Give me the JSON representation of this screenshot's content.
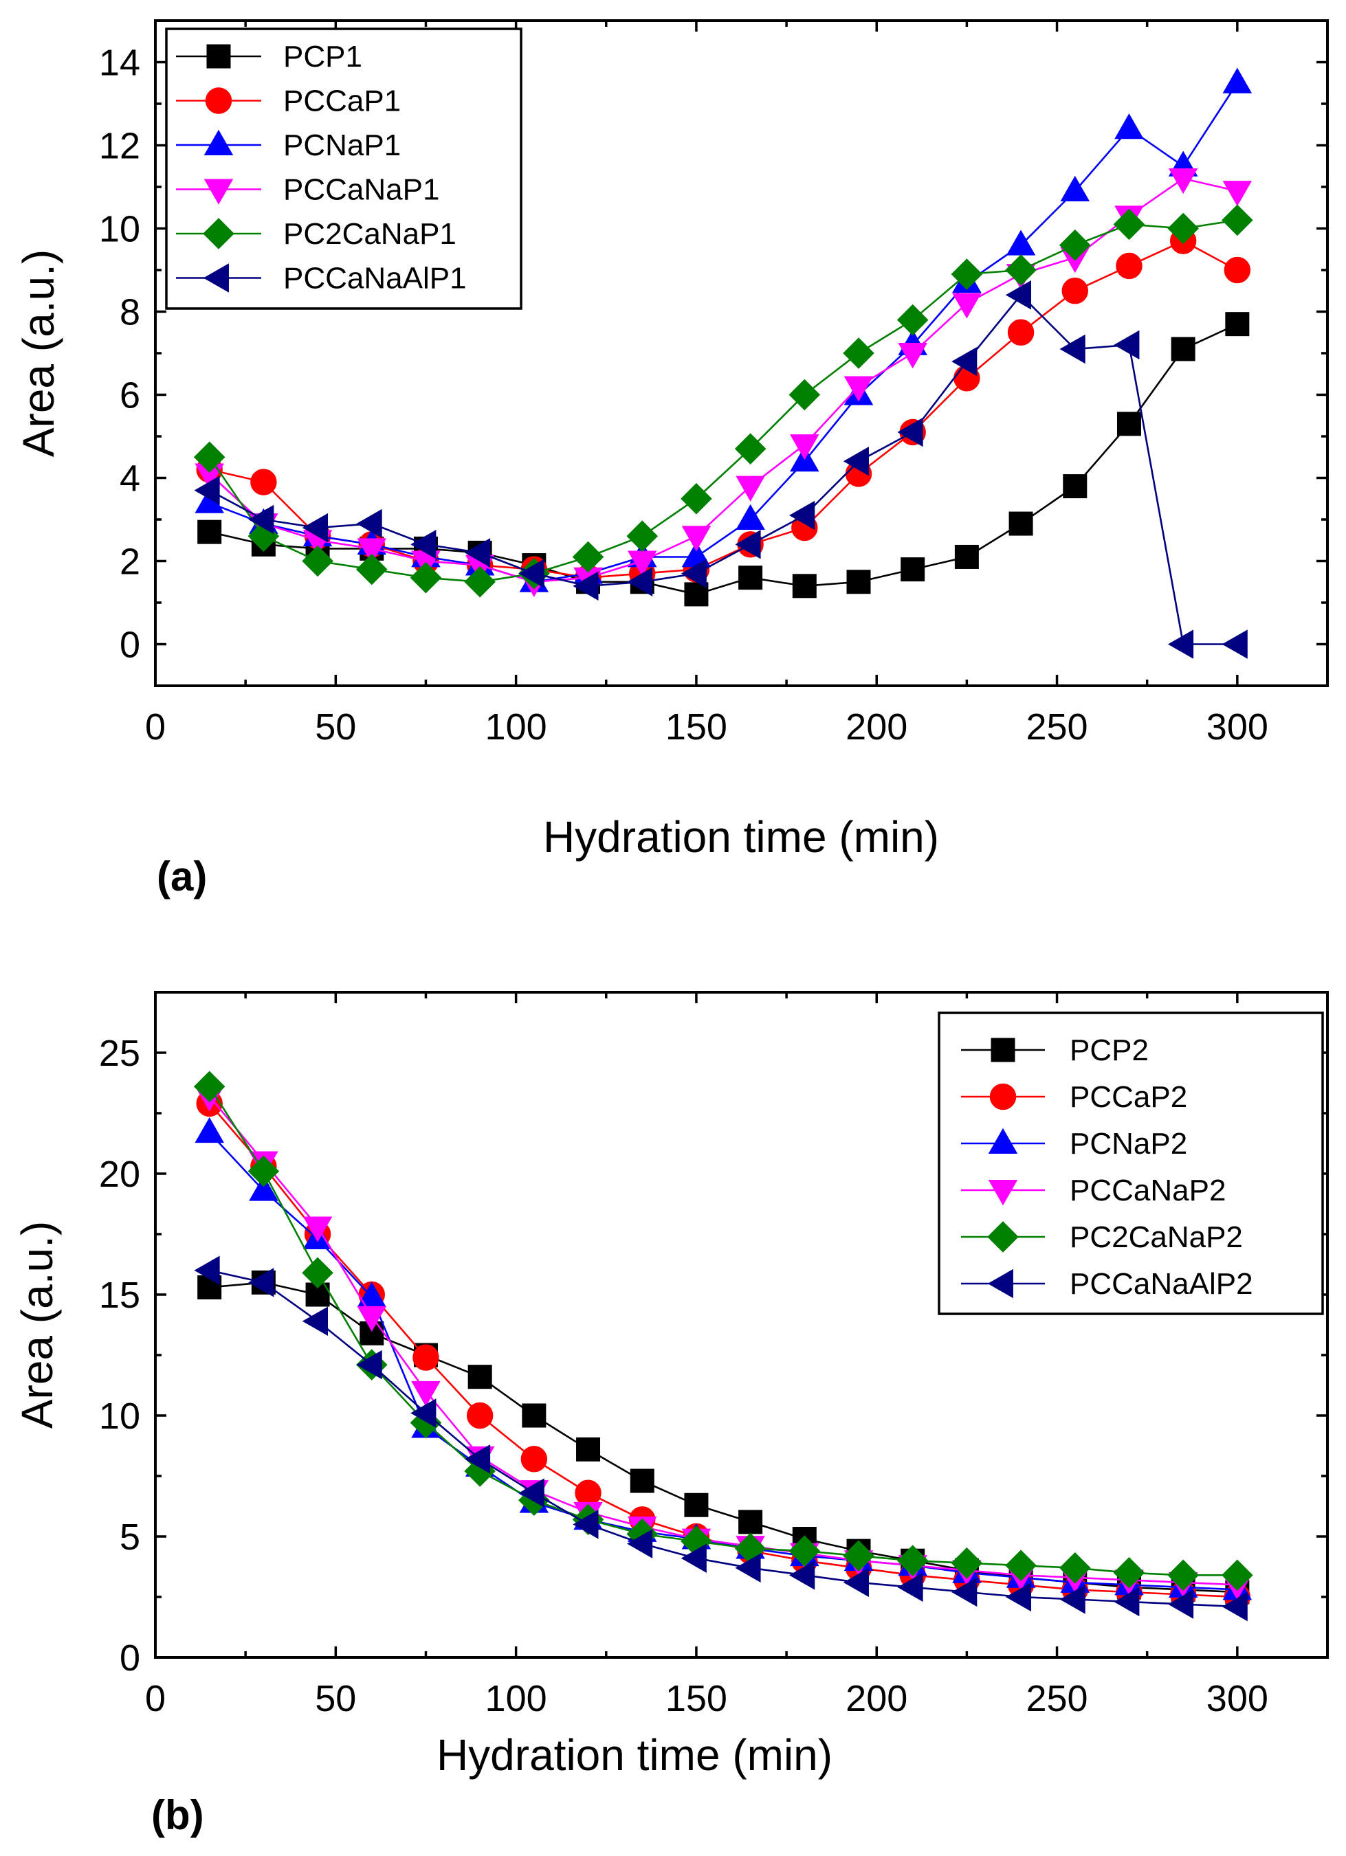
{
  "chart_data": [
    {
      "type": "line",
      "id": "a",
      "panel_label": "(a)",
      "xlabel": "Hydration time (min)",
      "ylabel": "Area (a.u.)",
      "xlim": [
        0,
        325
      ],
      "ylim": [
        -1,
        15
      ],
      "xticks": [
        0,
        50,
        100,
        150,
        200,
        250,
        300
      ],
      "yticks": [
        0,
        2,
        4,
        6,
        8,
        10,
        12,
        14
      ],
      "grid": false,
      "legend_position": "top-left",
      "x": [
        15,
        30,
        45,
        60,
        75,
        90,
        105,
        120,
        135,
        150,
        165,
        180,
        195,
        210,
        225,
        240,
        255,
        270,
        285,
        300
      ],
      "series": [
        {
          "name": "PCP1",
          "color": "#000000",
          "marker": "square",
          "values": [
            2.7,
            2.4,
            2.3,
            2.3,
            2.3,
            2.2,
            1.9,
            1.5,
            1.5,
            1.2,
            1.6,
            1.4,
            1.5,
            1.8,
            2.1,
            2.9,
            3.8,
            5.3,
            7.1,
            7.7
          ]
        },
        {
          "name": "PCCaP1",
          "color": "#ff0000",
          "marker": "circle",
          "values": [
            4.2,
            3.9,
            2.6,
            2.4,
            2.0,
            1.9,
            1.8,
            1.6,
            1.7,
            1.8,
            2.4,
            2.8,
            4.1,
            5.1,
            6.4,
            7.5,
            8.5,
            9.1,
            9.7,
            9.0
          ]
        },
        {
          "name": "PCNaP1",
          "color": "#0000ff",
          "marker": "triangle-up",
          "values": [
            3.4,
            2.9,
            2.6,
            2.4,
            2.1,
            1.9,
            1.5,
            1.7,
            2.1,
            2.1,
            3.0,
            4.4,
            6.0,
            7.2,
            8.7,
            9.6,
            10.9,
            12.4,
            11.5,
            13.5
          ]
        },
        {
          "name": "PCCaNaP1",
          "color": "#ff00ff",
          "marker": "triangle-down",
          "values": [
            4.1,
            2.9,
            2.5,
            2.3,
            2.0,
            1.9,
            1.5,
            1.6,
            2.0,
            2.6,
            3.8,
            4.8,
            6.2,
            7.0,
            8.2,
            8.9,
            9.3,
            10.3,
            11.2,
            10.9
          ]
        },
        {
          "name": "PC2CaNaP1",
          "color": "#008000",
          "marker": "diamond",
          "values": [
            4.5,
            2.6,
            2.0,
            1.8,
            1.6,
            1.5,
            1.7,
            2.1,
            2.6,
            3.5,
            4.7,
            6.0,
            7.0,
            7.8,
            8.9,
            9.0,
            9.6,
            10.1,
            10.0,
            10.2
          ]
        },
        {
          "name": "PCCaNaAlP1",
          "color": "#000080",
          "marker": "triangle-left",
          "values": [
            3.7,
            3.0,
            2.8,
            2.9,
            2.4,
            2.2,
            1.7,
            1.4,
            1.5,
            1.7,
            2.4,
            3.1,
            4.4,
            5.1,
            6.8,
            8.4,
            7.1,
            7.2,
            0.0,
            0.0
          ]
        }
      ]
    },
    {
      "type": "line",
      "id": "b",
      "panel_label": "(b)",
      "xlabel": "Hydration time (min)",
      "ylabel": "Area (a.u.)",
      "xlim": [
        0,
        325
      ],
      "ylim": [
        0,
        27.5
      ],
      "xticks": [
        0,
        50,
        100,
        150,
        200,
        250,
        300
      ],
      "yticks": [
        0,
        5,
        10,
        15,
        20,
        25
      ],
      "grid": false,
      "legend_position": "top-right",
      "x": [
        15,
        30,
        45,
        60,
        75,
        90,
        105,
        120,
        135,
        150,
        165,
        180,
        195,
        210,
        225,
        240,
        255,
        270,
        285,
        300
      ],
      "series": [
        {
          "name": "PCP2",
          "color": "#000000",
          "marker": "square",
          "values": [
            15.3,
            15.5,
            15.0,
            13.4,
            12.5,
            11.6,
            10.0,
            8.6,
            7.3,
            6.3,
            5.6,
            4.9,
            4.4,
            4.0,
            3.6,
            3.3,
            3.1,
            2.9,
            2.8,
            2.7
          ]
        },
        {
          "name": "PCCaP2",
          "color": "#ff0000",
          "marker": "circle",
          "values": [
            22.9,
            20.3,
            17.5,
            15.0,
            12.4,
            10.0,
            8.2,
            6.8,
            5.7,
            5.0,
            4.4,
            4.0,
            3.7,
            3.4,
            3.2,
            3.0,
            2.8,
            2.7,
            2.6,
            2.5
          ]
        },
        {
          "name": "PCNaP2",
          "color": "#0000ff",
          "marker": "triangle-up",
          "values": [
            21.7,
            19.3,
            17.3,
            14.9,
            9.5,
            7.9,
            6.4,
            5.7,
            5.2,
            4.9,
            4.5,
            4.2,
            4.0,
            3.8,
            3.5,
            3.3,
            3.1,
            3.0,
            2.9,
            2.8
          ]
        },
        {
          "name": "PCCaNaP2",
          "color": "#ff00ff",
          "marker": "triangle-down",
          "values": [
            23.2,
            20.5,
            17.8,
            14.1,
            11.0,
            8.3,
            6.9,
            6.0,
            5.4,
            4.9,
            4.6,
            4.3,
            4.0,
            3.8,
            3.6,
            3.4,
            3.3,
            3.2,
            3.1,
            3.0
          ]
        },
        {
          "name": "PC2CaNaP2",
          "color": "#008000",
          "marker": "diamond",
          "values": [
            23.6,
            20.1,
            15.9,
            12.1,
            9.7,
            7.7,
            6.5,
            5.7,
            5.1,
            4.8,
            4.5,
            4.4,
            4.2,
            4.0,
            3.9,
            3.8,
            3.7,
            3.5,
            3.4,
            3.4
          ]
        },
        {
          "name": "PCCaNaAlP2",
          "color": "#000080",
          "marker": "triangle-left",
          "values": [
            16.0,
            15.5,
            13.9,
            12.1,
            10.1,
            8.2,
            6.8,
            5.5,
            4.7,
            4.1,
            3.7,
            3.4,
            3.1,
            2.9,
            2.7,
            2.5,
            2.4,
            2.3,
            2.2,
            2.1
          ]
        }
      ]
    }
  ]
}
